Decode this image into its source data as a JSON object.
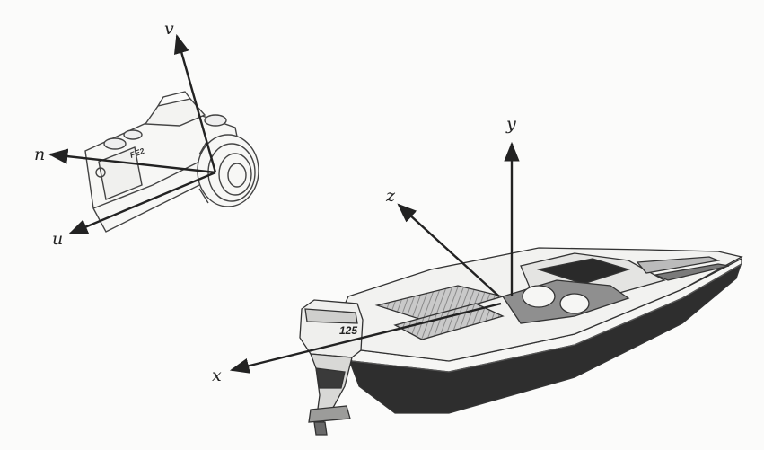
{
  "camera_frame": {
    "axes": {
      "v": "v",
      "n": "n",
      "u": "u"
    },
    "badge": "FE2"
  },
  "boat_frame": {
    "axes": {
      "y": "y",
      "z": "z",
      "x": "x"
    },
    "engine_number": "125"
  },
  "colors": {
    "ink": "#222222",
    "hull_dark": "#2e2e2e",
    "deck_gray": "#9a9a9a",
    "paper": "#fbfbfa"
  }
}
